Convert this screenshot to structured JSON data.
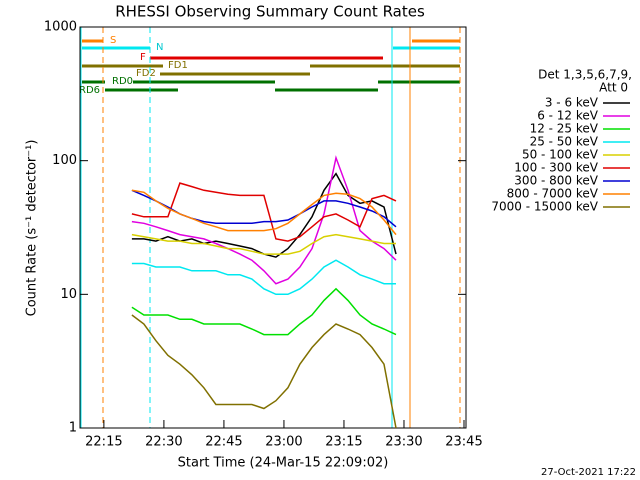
{
  "chart_data": {
    "type": "line",
    "title": "RHESSI Observing Summary Count Rates",
    "x_label": "Start Time (24-Mar-15 22:09:02)",
    "y_label": "Count Rate (s⁻¹ detector⁻¹)",
    "legend_header": [
      "Det 1,3,5,6,7,9,",
      "Att 0"
    ],
    "flag_labels": [
      "S",
      "N",
      "F",
      "FD1",
      "FD2",
      "RD0",
      "RD6"
    ],
    "footer": "27-Oct-2021 17:22",
    "log_y": true,
    "xlim": [
      9.03,
      105.5
    ],
    "xticks": [
      {
        "value": 15,
        "label": "22:15"
      },
      {
        "value": 30,
        "label": "22:30"
      },
      {
        "value": 45,
        "label": "22:45"
      },
      {
        "value": 60,
        "label": "23:00"
      },
      {
        "value": 75,
        "label": "23:15"
      },
      {
        "value": 90,
        "label": "23:30"
      },
      {
        "value": 105,
        "label": "23:45"
      }
    ],
    "ylim": [
      1,
      1000
    ],
    "yticks": [
      1,
      10,
      100,
      1000
    ],
    "x": [
      22,
      25,
      28,
      31,
      34,
      37,
      40,
      43,
      46,
      49,
      52,
      55,
      58,
      61,
      64,
      67,
      70,
      73,
      76,
      79,
      82,
      85,
      88
    ],
    "series": [
      {
        "name": "3 - 6 keV",
        "color": "#000000",
        "values": [
          26,
          26,
          25,
          27,
          25,
          26,
          24,
          25,
          24,
          23,
          22,
          20,
          19,
          22,
          28,
          38,
          60,
          80,
          55,
          48,
          50,
          45,
          20
        ]
      },
      {
        "name": "6 - 12 keV",
        "color": "#e000e0",
        "values": [
          35,
          34,
          32,
          30,
          28,
          27,
          26,
          24,
          22,
          20,
          18,
          15,
          12,
          13,
          16,
          22,
          40,
          105,
          60,
          30,
          25,
          22,
          18
        ]
      },
      {
        "name": "12 - 25 keV",
        "color": "#00e000",
        "values": [
          8,
          7,
          7,
          7,
          6.5,
          6.5,
          6,
          6,
          6,
          6,
          5.5,
          5,
          5,
          5,
          6,
          7,
          9,
          11,
          9,
          7,
          6,
          5.5,
          5
        ]
      },
      {
        "name": "25 - 50 keV",
        "color": "#00e8f0",
        "values": [
          17,
          17,
          16,
          16,
          16,
          15,
          15,
          15,
          14,
          14,
          13,
          11,
          10,
          10,
          11,
          13,
          16,
          18,
          16,
          14,
          13,
          12,
          12
        ]
      },
      {
        "name": "50 - 100 keV",
        "color": "#d8d000",
        "values": [
          28,
          27,
          26,
          25,
          25,
          24,
          24,
          23,
          22,
          22,
          21,
          20,
          20,
          20,
          21,
          24,
          27,
          28,
          27,
          26,
          25,
          24,
          24
        ]
      },
      {
        "name": "100 - 300 keV",
        "color": "#e00000",
        "values": [
          40,
          38,
          38,
          38,
          68,
          64,
          60,
          58,
          56,
          55,
          55,
          55,
          26,
          25,
          27,
          32,
          38,
          40,
          36,
          32,
          52,
          55,
          50
        ]
      },
      {
        "name": "300 - 800 keV",
        "color": "#0000d0",
        "values": [
          60,
          55,
          50,
          45,
          40,
          37,
          35,
          34,
          34,
          34,
          34,
          35,
          35,
          36,
          40,
          45,
          50,
          50,
          48,
          45,
          42,
          38,
          32
        ]
      },
      {
        "name": "800 - 7000 keV",
        "color": "#ff8000",
        "values": [
          60,
          58,
          50,
          44,
          40,
          37,
          34,
          32,
          30,
          30,
          30,
          30,
          31,
          34,
          40,
          47,
          55,
          57,
          56,
          52,
          45,
          36,
          28
        ]
      },
      {
        "name": "7000 - 15000 keV",
        "color": "#807000",
        "values": [
          7,
          6,
          4.5,
          3.5,
          3,
          2.5,
          2,
          1.5,
          1.5,
          1.5,
          1.5,
          1.4,
          1.6,
          2,
          3,
          4,
          5,
          6,
          5.5,
          5,
          4,
          3,
          1
        ]
      }
    ]
  }
}
